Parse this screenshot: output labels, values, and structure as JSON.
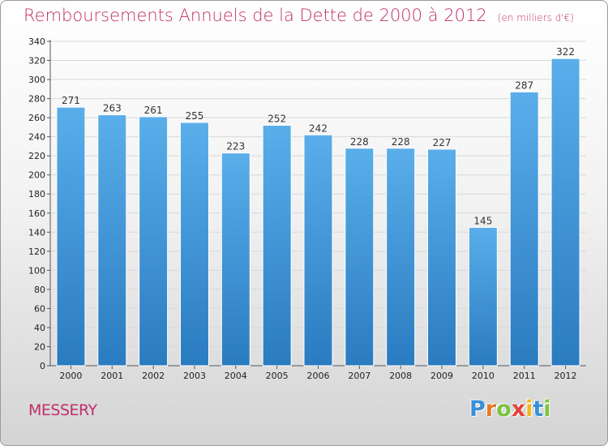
{
  "header": {
    "title": "Remboursements Annuels de la Dette de 2000 à 2012",
    "unit": "(en milliers d'€)"
  },
  "footer": {
    "commune": "MESSERY",
    "brand": "Proxiti",
    "brand_letters": [
      {
        "ch": "P",
        "color": "#3a8fd6"
      },
      {
        "ch": "r",
        "color": "#e07a2a"
      },
      {
        "ch": "o",
        "color": "#7cc242"
      },
      {
        "ch": "x",
        "color": "#e2433a"
      },
      {
        "ch": "i",
        "color": "#f2b617"
      },
      {
        "ch": "t",
        "color": "#3a8fd6"
      },
      {
        "ch": "i",
        "color": "#7cc242"
      }
    ]
  },
  "chart_data": {
    "type": "bar",
    "categories": [
      "2000",
      "2001",
      "2002",
      "2003",
      "2004",
      "2005",
      "2006",
      "2007",
      "2008",
      "2009",
      "2010",
      "2011",
      "2012"
    ],
    "values": [
      271,
      263,
      261,
      255,
      223,
      252,
      242,
      228,
      228,
      227,
      145,
      287,
      322
    ],
    "ylim": [
      0,
      340
    ],
    "yticks": [
      0,
      20,
      40,
      60,
      80,
      100,
      120,
      140,
      160,
      180,
      200,
      220,
      240,
      260,
      280,
      300,
      320,
      340
    ],
    "grid": true,
    "bar_color_top": "#5aaeea",
    "bar_color_bottom": "#2a7bc0",
    "legend": "none"
  }
}
